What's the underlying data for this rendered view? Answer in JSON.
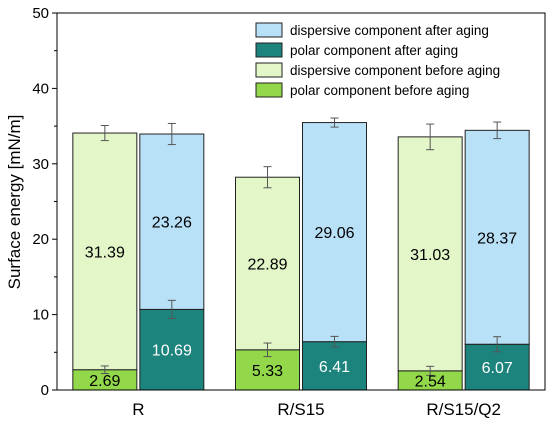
{
  "chart_data": {
    "type": "bar",
    "stacked": true,
    "categories": [
      "R",
      "R/S15",
      "R/S15/Q2"
    ],
    "ylabel": "Surface energy [mN/m]",
    "xlabel": "",
    "ylim": [
      0,
      50
    ],
    "yticks": [
      0,
      10,
      20,
      30,
      40,
      50
    ],
    "grid": false,
    "legend_position": "top-right",
    "groups": [
      {
        "stack": "before aging",
        "polar": {
          "name": "polar component before aging",
          "color": "#92d84a",
          "values": [
            2.69,
            5.33,
            2.54
          ],
          "errors": [
            0.5,
            0.9,
            0.6
          ]
        },
        "dispersive": {
          "name": "dispersive component before aging",
          "color": "#e3f6c8",
          "values": [
            31.39,
            22.89,
            31.03
          ],
          "errors": [
            1.0,
            1.4,
            1.7
          ]
        }
      },
      {
        "stack": "after aging",
        "polar": {
          "name": "polar component after aging",
          "color": "#1c837d",
          "values": [
            10.69,
            6.41,
            6.07
          ],
          "errors": [
            1.2,
            0.7,
            1.0
          ]
        },
        "dispersive": {
          "name": "dispersive component after aging",
          "color": "#b8e0f7",
          "values": [
            23.26,
            29.06,
            28.37
          ],
          "errors": [
            1.4,
            0.6,
            1.1
          ]
        }
      }
    ],
    "legend": [
      {
        "label": "dispersive component after aging",
        "color": "#b8e0f7"
      },
      {
        "label": "polar component after aging",
        "color": "#1c837d"
      },
      {
        "label": "dispersive component before aging",
        "color": "#e3f6c8"
      },
      {
        "label": "polar component before aging",
        "color": "#92d84a"
      }
    ]
  }
}
